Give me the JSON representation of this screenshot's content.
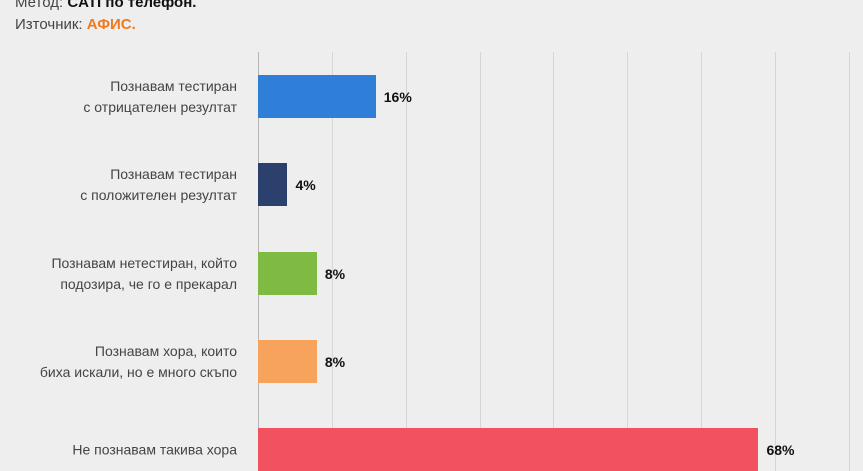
{
  "header": {
    "method_label": "Метод:",
    "method_value": "CATI по телефон.",
    "source_label": "Източник:",
    "source_value": "АФИС."
  },
  "colors": {
    "background": "#eeeeee",
    "source_accent": "#f07a1e",
    "bars": [
      "#2f7ed8",
      "#2c406e",
      "#7fbb42",
      "#f7a35c",
      "#f2515f"
    ]
  },
  "chart_data": {
    "type": "bar",
    "orientation": "horizontal",
    "title": "",
    "xlabel": "",
    "ylabel": "",
    "categories": [
      "Познавам тестиран\nс отрицателен резултат",
      "Познавам тестиран\nс положителен резултат",
      "Познавам нетестиран, който\nподозира, че го е прекарал",
      "Познавам хора, които\nбиха искали, но е много скъпо",
      "Не познавам такива хора"
    ],
    "values": [
      16,
      4,
      8,
      8,
      68
    ],
    "value_labels": [
      "16%",
      "4%",
      "8%",
      "8%",
      "68%"
    ],
    "unit": "%",
    "xlim": [
      0,
      80
    ],
    "grid": true,
    "gridline_step": 10,
    "legend": "none",
    "data_labels": true
  }
}
